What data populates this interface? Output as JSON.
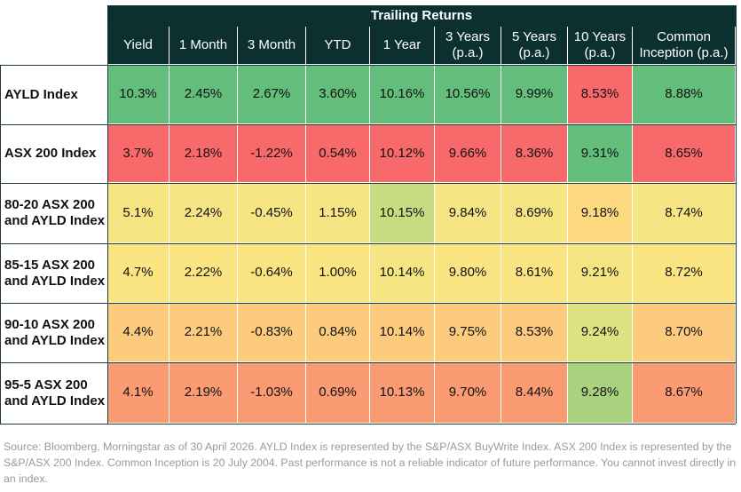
{
  "table": {
    "group_header": "Trailing Returns",
    "columns": [
      {
        "line1": "Yield",
        "line2": ""
      },
      {
        "line1": "1 Month",
        "line2": ""
      },
      {
        "line1": "3 Month",
        "line2": ""
      },
      {
        "line1": "YTD",
        "line2": ""
      },
      {
        "line1": "1 Year",
        "line2": ""
      },
      {
        "line1": "3 Years",
        "line2": "(p.a.)"
      },
      {
        "line1": "5 Years",
        "line2": "(p.a.)"
      },
      {
        "line1": "10 Years",
        "line2": "(p.a.)"
      },
      {
        "line1": "Common",
        "line2": "Inception (p.a.)"
      }
    ],
    "rows": [
      {
        "label": "AYLD Index",
        "values": [
          "10.3%",
          "2.45%",
          "2.67%",
          "3.60%",
          "10.16%",
          "10.56%",
          "9.99%",
          "8.53%",
          "8.88%"
        ],
        "colors": [
          "#63be7b",
          "#63be7b",
          "#63be7b",
          "#63be7b",
          "#63be7b",
          "#63be7b",
          "#63be7b",
          "#f8696b",
          "#63be7b"
        ]
      },
      {
        "label": "ASX 200 Index",
        "values": [
          "3.7%",
          "2.18%",
          "-1.22%",
          "0.54%",
          "10.12%",
          "9.66%",
          "8.36%",
          "9.31%",
          "8.65%"
        ],
        "colors": [
          "#f8696b",
          "#f8696b",
          "#f8696b",
          "#f8696b",
          "#f8696b",
          "#f8696b",
          "#f8696b",
          "#63be7b",
          "#f8696b"
        ]
      },
      {
        "label": "80-20 ASX 200 and AYLD Index",
        "values": [
          "5.1%",
          "2.24%",
          "-0.45%",
          "1.15%",
          "10.15%",
          "9.84%",
          "8.69%",
          "9.18%",
          "8.74%"
        ],
        "colors": [
          "#f6e683",
          "#f6e683",
          "#f6e683",
          "#f6e683",
          "#c7db81",
          "#f6e683",
          "#f6e683",
          "#fdd97f",
          "#f6e683"
        ]
      },
      {
        "label": "85-15 ASX 200 and AYLD Index",
        "values": [
          "4.7%",
          "2.22%",
          "-0.64%",
          "1.00%",
          "10.14%",
          "9.80%",
          "8.61%",
          "9.21%",
          "8.72%"
        ],
        "colors": [
          "#fbe482",
          "#fbe482",
          "#fbe482",
          "#fbe482",
          "#f6e683",
          "#fbe482",
          "#fbe482",
          "#f6e683",
          "#fbe482"
        ]
      },
      {
        "label": "90-10 ASX 200 and AYLD Index",
        "values": [
          "4.4%",
          "2.21%",
          "-0.83%",
          "0.84%",
          "10.14%",
          "9.75%",
          "8.53%",
          "9.24%",
          "8.70%"
        ],
        "colors": [
          "#fdcb7d",
          "#fdcb7d",
          "#fdcb7d",
          "#fdcb7d",
          "#fdcb7d",
          "#fdcb7d",
          "#fdcb7d",
          "#dfe283",
          "#fdcb7d"
        ]
      },
      {
        "label": "95-5 ASX 200 and AYLD Index",
        "values": [
          "4.1%",
          "2.19%",
          "-1.03%",
          "0.69%",
          "10.13%",
          "9.70%",
          "8.44%",
          "9.28%",
          "8.67%"
        ],
        "colors": [
          "#fb9b74",
          "#fb9b74",
          "#fb9b74",
          "#fb9b74",
          "#fb9b74",
          "#fb9b74",
          "#fb9b74",
          "#a9d27f",
          "#fb9b74"
        ]
      }
    ]
  },
  "footnote": "Source: Bloomberg, Morningstar as of 30 April 2026. AYLD Index is represented by the S&P/ASX BuyWrite Index. ASX 200 Index is represented by the S&P/ASX 200 Index. Common Inception is 20 July 2004. Past performance is not a reliable indicator of future performance.  You cannot invest directly in an index."
}
